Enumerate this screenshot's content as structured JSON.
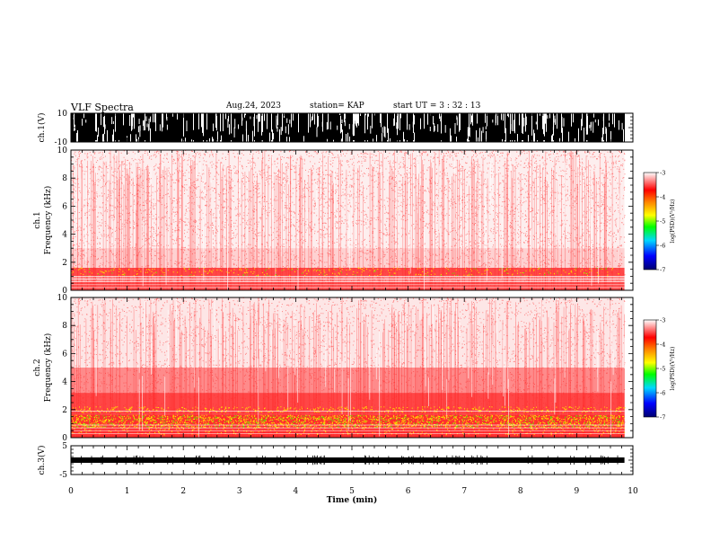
{
  "header": {
    "title": "VLF Spectra",
    "date": "Aug.24, 2023",
    "station": "station= KAP",
    "start": "start  UT  =   3  : 32 : 13"
  },
  "chart_data": {
    "type": "heatmap",
    "panels": [
      {
        "name": "ch.1 waveform",
        "ylabel": "ch.1(V)",
        "ylim": [
          -10,
          10
        ],
        "yticks": [
          "10",
          "-10"
        ]
      },
      {
        "name": "ch.1 spectrogram",
        "ylabel": "ch.1\nFrequency (kHz)",
        "ylim": [
          0,
          10
        ],
        "yticks": [
          "0",
          "2",
          "4",
          "6",
          "8",
          "10"
        ]
      },
      {
        "name": "ch.2 spectrogram",
        "ylabel": "ch.2\nFrequency (kHz)",
        "ylim": [
          0,
          10
        ],
        "yticks": [
          "0",
          "2",
          "4",
          "6",
          "8",
          "10"
        ]
      },
      {
        "name": "ch.3 waveform",
        "ylabel": "ch.3(V)",
        "ylim": [
          -5,
          5
        ],
        "yticks": [
          "5",
          "-5"
        ]
      }
    ],
    "xlabel": "Time (min)",
    "xlim": [
      0,
      10
    ],
    "xticks": [
      "0",
      "1",
      "2",
      "3",
      "4",
      "5",
      "6",
      "7",
      "8",
      "9",
      "10"
    ],
    "data_end_min": 9.85,
    "colorbar": {
      "label": "log(PSD)(V²/Hz)",
      "range": [
        -7,
        -3
      ],
      "ticks": [
        "-3",
        "-4",
        "-5",
        "-6",
        "-7"
      ],
      "colors": [
        "#000080",
        "#0000ff",
        "#00e0ff",
        "#00ff00",
        "#ffff00",
        "#ff8000",
        "#ff0000",
        "#ffffff"
      ]
    },
    "ch1_spectrum": {
      "bands": [
        {
          "from_khz": 0,
          "to_khz": 0.6,
          "level": "high"
        },
        {
          "from_khz": 0.6,
          "to_khz": 1.0,
          "level": "medium"
        },
        {
          "from_khz": 1.0,
          "to_khz": 1.6,
          "level": "high"
        },
        {
          "from_khz": 1.6,
          "to_khz": 3.0,
          "level": "low"
        },
        {
          "from_khz": 3.0,
          "to_khz": 10,
          "level": "background"
        }
      ]
    },
    "ch2_spectrum": {
      "bands": [
        {
          "from_khz": 0,
          "to_khz": 0.7,
          "level": "very high"
        },
        {
          "from_khz": 0.7,
          "to_khz": 1.6,
          "level": "very high"
        },
        {
          "from_khz": 1.6,
          "to_khz": 3.2,
          "level": "high"
        },
        {
          "from_khz": 3.2,
          "to_khz": 5.0,
          "level": "medium"
        },
        {
          "from_khz": 5.0,
          "to_khz": 10,
          "level": "background"
        }
      ]
    }
  }
}
